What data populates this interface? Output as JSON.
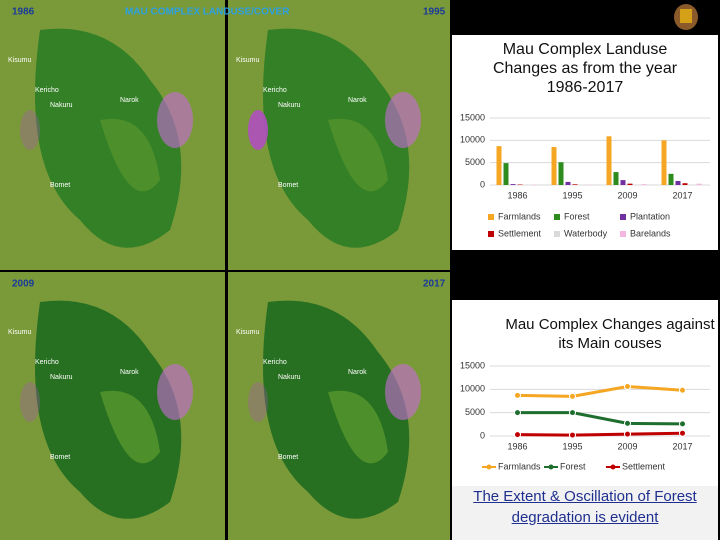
{
  "slide": {
    "map_title": "MAU COMPLEX LANDUSE/COVER",
    "map_years": [
      "1986",
      "1995",
      "2009",
      "2017"
    ],
    "map_places": [
      "Kisumu",
      "Kericho",
      "Nakuru",
      "Narok",
      "Bomet"
    ],
    "caption": "The Extent & Oscillation of Forest degradation is evident"
  },
  "chart_data": [
    {
      "type": "bar",
      "title": "Mau Complex Landuse Changes as from the year 1986-2017",
      "categories": [
        "1986",
        "1995",
        "2009",
        "2017"
      ],
      "series": [
        {
          "name": "Farmlands",
          "color": "#f5a623",
          "values": [
            8700,
            8500,
            10900,
            10000
          ]
        },
        {
          "name": "Forest",
          "color": "#2e8b1e",
          "values": [
            4900,
            5100,
            2900,
            2500
          ]
        },
        {
          "name": "Plantation",
          "color": "#7030a0",
          "values": [
            200,
            700,
            1100,
            900
          ]
        },
        {
          "name": "Settlement",
          "color": "#c00000",
          "values": [
            100,
            150,
            300,
            400
          ]
        },
        {
          "name": "Waterbody",
          "color": "#d9d9d9",
          "values": [
            50,
            50,
            50,
            50
          ]
        },
        {
          "name": "Barelands",
          "color": "#f4b6e0",
          "values": [
            100,
            100,
            200,
            300
          ]
        }
      ],
      "ylim": [
        0,
        15000
      ],
      "yticks": [
        0,
        5000,
        10000,
        15000
      ],
      "grid": true
    },
    {
      "type": "line",
      "title": "Mau Complex Changes against its   Main couses",
      "categories": [
        "1986",
        "1995",
        "2009",
        "2017"
      ],
      "series": [
        {
          "name": "Farmlands",
          "color": "#f5a623",
          "values": [
            8700,
            8500,
            10600,
            9800
          ]
        },
        {
          "name": "Forest",
          "color": "#1e6e2e",
          "values": [
            5000,
            5000,
            2700,
            2600
          ]
        },
        {
          "name": "Settlement",
          "color": "#c00000",
          "values": [
            300,
            200,
            400,
            600
          ]
        }
      ],
      "ylim": [
        0,
        15000
      ],
      "yticks": [
        0,
        5000,
        10000,
        15000
      ],
      "grid": true
    }
  ]
}
